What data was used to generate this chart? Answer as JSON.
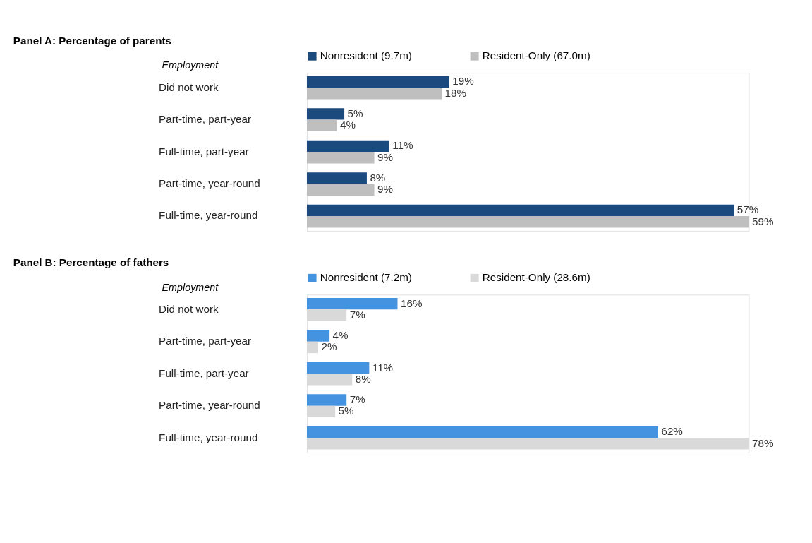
{
  "chart_data": [
    {
      "type": "bar",
      "orientation": "horizontal",
      "title": "Panel A: Percentage of parents",
      "ylabel": "Employment",
      "legend": "top",
      "grid": false,
      "categories": [
        "Did not work",
        "Part-time, part-year",
        "Full-time, part-year",
        "Part-time, year-round",
        "Full-time, year-round"
      ],
      "series": [
        {
          "name": "Nonresident (9.7m)",
          "color": "#1b4a7f",
          "values": [
            19,
            5,
            11,
            8,
            57
          ],
          "value_labels": [
            "19%",
            "5%",
            "11%",
            "8%",
            "57%"
          ]
        },
        {
          "name": "Resident-Only (67.0m)",
          "color": "#bfbfbf",
          "values": [
            18,
            4,
            9,
            9,
            59
          ],
          "value_labels": [
            "18%",
            "4%",
            "9%",
            "9%",
            "59%"
          ]
        }
      ]
    },
    {
      "type": "bar",
      "orientation": "horizontal",
      "title": "Panel B: Percentage of fathers",
      "ylabel": "Employment",
      "legend": "top",
      "grid": false,
      "categories": [
        "Did not work",
        "Part-time, part-year",
        "Full-time, part-year",
        "Part-time, year-round",
        "Full-time, year-round"
      ],
      "series": [
        {
          "name": "Nonresident (7.2m)",
          "color": "#4393e0",
          "values": [
            16,
            4,
            11,
            7,
            62
          ],
          "value_labels": [
            "16%",
            "4%",
            "11%",
            "7%",
            "62%"
          ]
        },
        {
          "name": "Resident-Only (28.6m)",
          "color": "#d9d9d9",
          "values": [
            7,
            2,
            8,
            5,
            78
          ],
          "value_labels": [
            "7%",
            "2%",
            "8%",
            "5%",
            "78%"
          ]
        }
      ]
    }
  ]
}
